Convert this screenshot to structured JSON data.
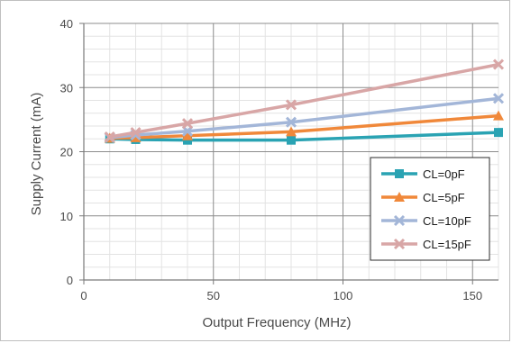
{
  "chart_data": {
    "type": "line",
    "title": "",
    "xlabel": "Output Frequency (MHz)",
    "ylabel": "Supply Current (mA)",
    "xlim": [
      0,
      160
    ],
    "ylim": [
      0,
      40
    ],
    "x_major_ticks": [
      0,
      50,
      100,
      150
    ],
    "y_major_ticks": [
      0,
      10,
      20,
      30,
      40
    ],
    "x_minor_step": 10,
    "y_minor_step": 2,
    "grid": true,
    "legend_position": "lower-right",
    "series": [
      {
        "name": "CL=0pF",
        "color": "#2aa3b3",
        "marker": "square",
        "x": [
          10,
          20,
          40,
          80,
          160
        ],
        "y": [
          22.0,
          21.9,
          21.8,
          21.8,
          23.0
        ]
      },
      {
        "name": "CL=5pF",
        "color": "#f0883a",
        "marker": "triangle",
        "x": [
          10,
          20,
          40,
          80,
          160
        ],
        "y": [
          22.1,
          22.2,
          22.5,
          23.1,
          25.6
        ]
      },
      {
        "name": "CL=10pF",
        "color": "#a3b6d8",
        "marker": "cross",
        "x": [
          10,
          20,
          40,
          80,
          160
        ],
        "y": [
          22.2,
          22.6,
          23.2,
          24.6,
          28.3
        ]
      },
      {
        "name": "CL=15pF",
        "color": "#d8a6a6",
        "marker": "cross",
        "x": [
          10,
          20,
          40,
          80,
          160
        ],
        "y": [
          22.3,
          23.0,
          24.4,
          27.3,
          33.6
        ]
      }
    ]
  }
}
